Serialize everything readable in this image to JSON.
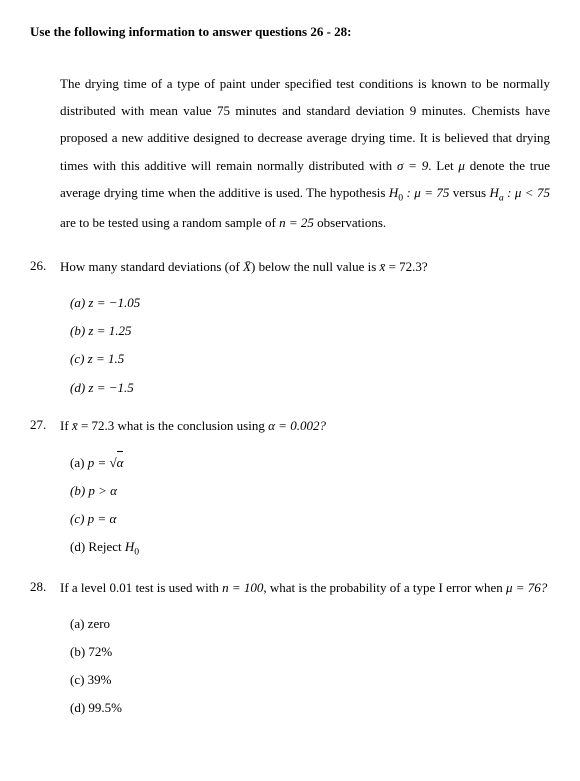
{
  "header": "Use the following information to answer questions 26 - 28:",
  "context": {
    "part1": "The drying time of a type of paint under specified test conditions is known to be normally distributed with mean value 75 minutes and standard deviation 9 minutes. Chemists have proposed a new additive designed to decrease average drying time. It is believed that drying times with this additive will remain normally distributed with ",
    "sigma_expr": "σ = 9",
    "part2": ". Let ",
    "mu_sym": "μ",
    "part3": " denote the true average drying time when the additive is used. The hypothesis ",
    "h0_expr": "H",
    "h0_sub": "0",
    "h0_mid": " : μ = 75",
    "versus": " versus ",
    "ha_expr": "H",
    "ha_sub": "a",
    "ha_mid": " : μ < 75",
    "part4": " are to be tested using a random sample of ",
    "n_expr": "n = 25",
    "part5": " observations."
  },
  "q26": {
    "number": "26.",
    "text1": "How many standard deviations (of ",
    "xbar_sym": "X̄",
    "text2": ") below the null value is ",
    "xbar2": "x̄",
    "text3": " = 72.3?",
    "options": {
      "a": "(a)  z = −1.05",
      "b": "(b)  z = 1.25",
      "c": "(c)  z = 1.5",
      "d": "(d)  z = −1.5"
    }
  },
  "q27": {
    "number": "27.",
    "text1": "If ",
    "xbar": "x̄",
    "text2": " = 72.3 what is the conclusion using ",
    "alpha_expr": "α = 0.002?",
    "options": {
      "a_label": "(a)  ",
      "a_expr1": "p = ",
      "a_sqrt_sym": "√",
      "a_sqrt_content": "α",
      "b": "(b)  p > α",
      "c": "(c)  p = α",
      "d_label": "(d)  Reject ",
      "d_h": "H",
      "d_sub": "0"
    }
  },
  "q28": {
    "number": "28.",
    "text1": "If a level 0.01 test is used with ",
    "n_expr": "n = 100",
    "text2": ", what is the probability of a type I error when ",
    "mu_expr": "μ = 76?",
    "options": {
      "a": "(a)  zero",
      "b": "(b)  72%",
      "c": "(c)  39%",
      "d": "(d)  99.5%"
    }
  }
}
